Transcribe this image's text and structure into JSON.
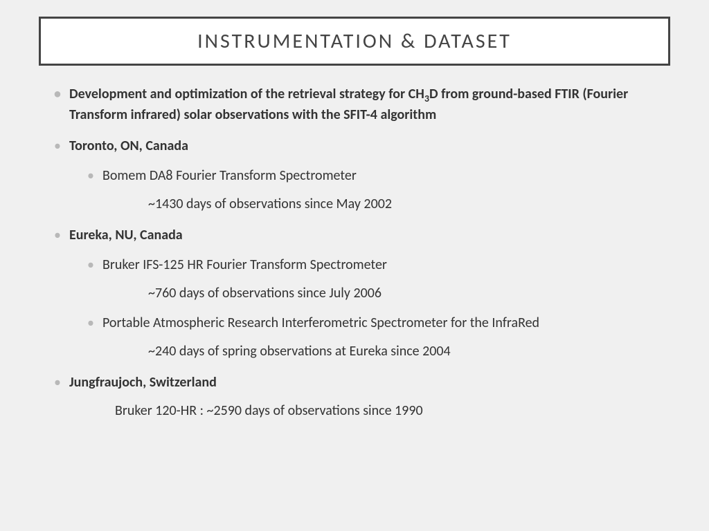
{
  "title": "INSTRUMENTATION & DATASET",
  "items": [
    {
      "text_pre": "Development and optimization of the retrieval strategy for CH",
      "sub": "3",
      "text_post": "D from ground-based FTIR (Fourier Transform infrared) solar observations with the SFIT-4 algorithm",
      "bold": true
    },
    {
      "text": "Toronto, ON, Canada",
      "bold": true,
      "children": [
        {
          "text": "Bomem DA8 Fourier Transform Spectrometer",
          "detail": "~1430 days of observations since May 2002"
        }
      ]
    },
    {
      "text": "Eureka, NU, Canada",
      "bold": true,
      "children": [
        {
          "text": "Bruker IFS-125 HR Fourier Transform Spectrometer",
          "detail": "~760 days of observations since July 2006"
        },
        {
          "text": "Portable Atmospheric Research Interferometric Spectrometer for the InfraRed",
          "detail": "~240 days of spring observations at Eureka since 2004"
        }
      ]
    },
    {
      "text": "Jungfraujoch, Switzerland",
      "bold": true,
      "detail": "Bruker 120-HR : ~2590 days of observations since 1990"
    }
  ],
  "colors": {
    "background": "#f0f0f0",
    "title_border": "#444444",
    "title_bg": "#ffffff",
    "bullet": "#b8b8b8",
    "text": "#333333"
  },
  "typography": {
    "title_fontsize": 30,
    "title_letterspacing": 3,
    "body_fontsize": 20,
    "font_family": "Gill Sans"
  }
}
